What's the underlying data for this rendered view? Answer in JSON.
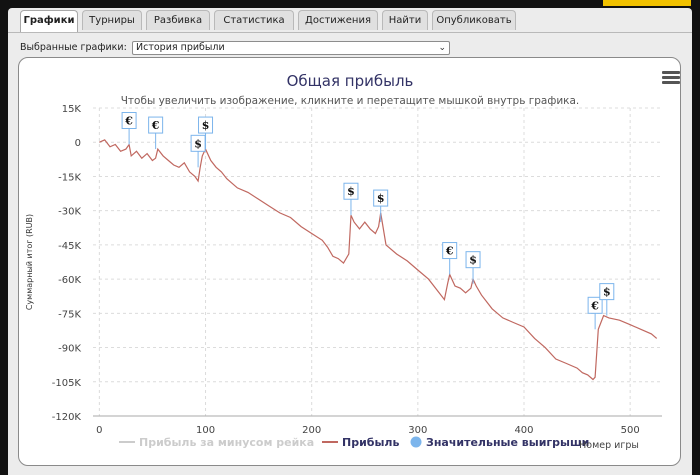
{
  "tabs": [
    "Графики",
    "Турниры",
    "Разбивка",
    "Статистика",
    "Достижения",
    "Найти",
    "Опубликовать"
  ],
  "active_tab": "Графики",
  "selector": {
    "label": "Выбранные графики:",
    "value": "История прибыли"
  },
  "menu_icon": "hamburger-menu-icon",
  "colors": {
    "line": "#c06860",
    "grid": "#dcdcdc",
    "title": "#333366",
    "legend_dot": "#7cb5ec"
  },
  "chart_data": {
    "type": "line",
    "title": "Общая прибыль",
    "subtitle": "Чтобы увеличить изображение, кликните и перетащите мышкой внутрь графика.",
    "ylabel": "Суммарный итог (RUB)",
    "xlabel": "Номер игры",
    "xlim": [
      -6,
      530
    ],
    "ylim": [
      -120000,
      15000
    ],
    "xticks": [
      0,
      100,
      200,
      300,
      400,
      500
    ],
    "yticks": [
      15000,
      0,
      -15000,
      -30000,
      -45000,
      -60000,
      -75000,
      -90000,
      -105000,
      -120000
    ],
    "ytick_labels": [
      "15K",
      "0",
      "-15K",
      "-30K",
      "-45K",
      "-60K",
      "-75K",
      "-90K",
      "-105K",
      "-120K"
    ],
    "grid": true,
    "legend": [
      {
        "name": "Прибыль за минусом рейка",
        "style": "line",
        "active": false
      },
      {
        "name": "Прибыль",
        "style": "line",
        "active": true
      },
      {
        "name": "Значительные выигрыши",
        "style": "dot",
        "active": true
      }
    ],
    "series": [
      {
        "name": "Прибыль",
        "x": [
          0,
          5,
          10,
          15,
          20,
          25,
          28,
          30,
          35,
          40,
          45,
          50,
          53,
          55,
          60,
          65,
          70,
          75,
          80,
          85,
          90,
          93,
          95,
          97,
          100,
          105,
          110,
          115,
          120,
          125,
          130,
          140,
          150,
          160,
          170,
          180,
          190,
          200,
          210,
          215,
          220,
          225,
          230,
          235,
          237,
          240,
          245,
          250,
          255,
          260,
          263,
          265,
          270,
          280,
          290,
          300,
          310,
          320,
          325,
          328,
          330,
          335,
          340,
          345,
          350,
          352,
          355,
          360,
          370,
          380,
          390,
          400,
          410,
          420,
          430,
          440,
          450,
          455,
          460,
          465,
          467,
          470,
          475,
          480,
          490,
          500,
          510,
          520,
          525
        ],
        "y": [
          0,
          1000,
          -2000,
          -1000,
          -4000,
          -3000,
          -1000,
          -6000,
          -4000,
          -7000,
          -5000,
          -8000,
          -7000,
          -3000,
          -6000,
          -8000,
          -10000,
          -11000,
          -9000,
          -13000,
          -15000,
          -17000,
          -11000,
          -6000,
          -3000,
          -8000,
          -11000,
          -13000,
          -16000,
          -18000,
          -20000,
          -22000,
          -25000,
          -28000,
          -31000,
          -33000,
          -37000,
          -40000,
          -43000,
          -46000,
          -50000,
          -51000,
          -53000,
          -49000,
          -32000,
          -35000,
          -38000,
          -35000,
          -38000,
          -40000,
          -37000,
          -31000,
          -45000,
          -49000,
          -52000,
          -56000,
          -60000,
          -66000,
          -69000,
          -62000,
          -58000,
          -63000,
          -64000,
          -66000,
          -64000,
          -60000,
          -63000,
          -67000,
          -73000,
          -77000,
          -79000,
          -81000,
          -86000,
          -90000,
          -95000,
          -97000,
          -99000,
          -101000,
          -102000,
          -104000,
          -103000,
          -82000,
          -76000,
          -77000,
          -78000,
          -80000,
          -82000,
          -84000,
          -86000
        ]
      }
    ],
    "markers": [
      {
        "x": 28,
        "y": -1000,
        "label": "€"
      },
      {
        "x": 53,
        "y": -3000,
        "label": "€"
      },
      {
        "x": 93,
        "y": -11000,
        "label": "$"
      },
      {
        "x": 100,
        "y": -3000,
        "label": "$"
      },
      {
        "x": 237,
        "y": -32000,
        "label": "$"
      },
      {
        "x": 265,
        "y": -35000,
        "label": "$"
      },
      {
        "x": 330,
        "y": -58000,
        "label": "€"
      },
      {
        "x": 352,
        "y": -62000,
        "label": "$"
      },
      {
        "x": 467,
        "y": -82000,
        "label": "€"
      },
      {
        "x": 478,
        "y": -76000,
        "label": "$"
      }
    ]
  }
}
